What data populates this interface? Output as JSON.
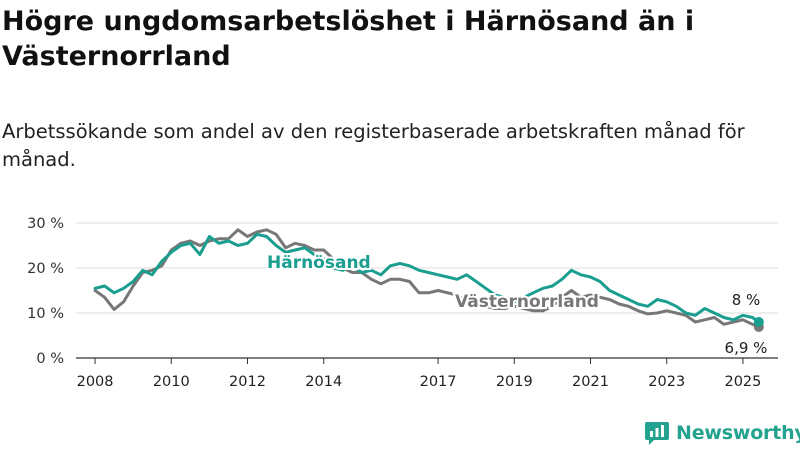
{
  "title": "Högre ungdomsarbetslöshet i Härnösand än i Västernorrland",
  "subtitle": "Arbetssökande som andel av den registerbaserade arbetskraften månad för månad.",
  "brand": {
    "name": "Newsworthy",
    "icon": "newsworthy-logo-icon",
    "color": "#23a38f"
  },
  "colors": {
    "harnosand": "#1a9e8f",
    "vasternorrland": "#777777",
    "grid": "#dddddd",
    "axis": "#333333"
  },
  "chart_data": {
    "type": "line",
    "title": "Högre ungdomsarbetslöshet i Härnösand än i Västernorrland",
    "subtitle": "Arbetssökande som andel av den registerbaserade arbetskraften månad för månad.",
    "ylim": [
      0,
      30
    ],
    "xlim": [
      "2007-07",
      "2025-07"
    ],
    "y_ticks": [
      {
        "value": 0,
        "label": "0 %"
      },
      {
        "value": 10,
        "label": "10 %"
      },
      {
        "value": 20,
        "label": "20 %"
      },
      {
        "value": 30,
        "label": "30 %"
      }
    ],
    "x_ticks": [
      {
        "value": "2008-01",
        "label": "2008"
      },
      {
        "value": "2010-01",
        "label": "2010"
      },
      {
        "value": "2012-01",
        "label": "2012"
      },
      {
        "value": "2014-01",
        "label": "2014"
      },
      {
        "value": "2017-01",
        "label": "2017"
      },
      {
        "value": "2019-01",
        "label": "2019"
      },
      {
        "value": "2021-01",
        "label": "2021"
      },
      {
        "value": "2023-01",
        "label": "2023"
      },
      {
        "value": "2025-01",
        "label": "2025"
      }
    ],
    "grid": true,
    "series": [
      {
        "name": "Västernorrland",
        "color": "#777777",
        "end_label": "6,9 %",
        "points": [
          [
            "2008-01",
            15.0
          ],
          [
            "2008-04",
            13.5
          ],
          [
            "2008-07",
            10.8
          ],
          [
            "2008-10",
            12.5
          ],
          [
            "2009-01",
            16.0
          ],
          [
            "2009-04",
            19.0
          ],
          [
            "2009-07",
            19.5
          ],
          [
            "2009-10",
            20.5
          ],
          [
            "2010-01",
            24.0
          ],
          [
            "2010-04",
            25.5
          ],
          [
            "2010-07",
            26.0
          ],
          [
            "2010-10",
            25.0
          ],
          [
            "2011-01",
            26.0
          ],
          [
            "2011-04",
            26.5
          ],
          [
            "2011-07",
            26.5
          ],
          [
            "2011-10",
            28.5
          ],
          [
            "2012-01",
            27.0
          ],
          [
            "2012-04",
            28.0
          ],
          [
            "2012-07",
            28.5
          ],
          [
            "2012-10",
            27.5
          ],
          [
            "2013-01",
            24.5
          ],
          [
            "2013-04",
            25.5
          ],
          [
            "2013-07",
            25.0
          ],
          [
            "2013-10",
            24.0
          ],
          [
            "2014-01",
            24.0
          ],
          [
            "2014-04",
            22.0
          ],
          [
            "2014-07",
            20.0
          ],
          [
            "2014-10",
            19.0
          ],
          [
            "2015-01",
            19.0
          ],
          [
            "2015-04",
            17.5
          ],
          [
            "2015-07",
            16.5
          ],
          [
            "2015-10",
            17.5
          ],
          [
            "2016-01",
            17.5
          ],
          [
            "2016-04",
            17.0
          ],
          [
            "2016-07",
            14.5
          ],
          [
            "2016-10",
            14.5
          ],
          [
            "2017-01",
            15.0
          ],
          [
            "2017-04",
            14.5
          ],
          [
            "2017-07",
            14.0
          ],
          [
            "2017-10",
            12.5
          ],
          [
            "2018-01",
            12.0
          ],
          [
            "2018-04",
            11.5
          ],
          [
            "2018-07",
            11.0
          ],
          [
            "2018-10",
            11.0
          ],
          [
            "2019-01",
            11.5
          ],
          [
            "2019-04",
            11.0
          ],
          [
            "2019-07",
            10.5
          ],
          [
            "2019-10",
            10.5
          ],
          [
            "2020-01",
            11.5
          ],
          [
            "2020-04",
            13.5
          ],
          [
            "2020-07",
            15.0
          ],
          [
            "2020-10",
            13.5
          ],
          [
            "2021-01",
            14.0
          ],
          [
            "2021-04",
            13.5
          ],
          [
            "2021-07",
            13.0
          ],
          [
            "2021-10",
            12.0
          ],
          [
            "2022-01",
            11.5
          ],
          [
            "2022-04",
            10.5
          ],
          [
            "2022-07",
            9.8
          ],
          [
            "2022-10",
            10.0
          ],
          [
            "2023-01",
            10.5
          ],
          [
            "2023-04",
            10.0
          ],
          [
            "2023-07",
            9.5
          ],
          [
            "2023-10",
            8.0
          ],
          [
            "2024-01",
            8.5
          ],
          [
            "2024-04",
            9.0
          ],
          [
            "2024-07",
            7.5
          ],
          [
            "2024-10",
            8.0
          ],
          [
            "2025-01",
            8.5
          ],
          [
            "2025-04",
            7.5
          ],
          [
            "2025-06",
            6.9
          ]
        ]
      },
      {
        "name": "Härnösand",
        "color": "#1a9e8f",
        "end_label": "8 %",
        "points": [
          [
            "2008-01",
            15.5
          ],
          [
            "2008-04",
            16.0
          ],
          [
            "2008-07",
            14.5
          ],
          [
            "2008-10",
            15.5
          ],
          [
            "2009-01",
            17.0
          ],
          [
            "2009-04",
            19.5
          ],
          [
            "2009-07",
            18.5
          ],
          [
            "2009-10",
            21.5
          ],
          [
            "2010-01",
            23.5
          ],
          [
            "2010-04",
            25.0
          ],
          [
            "2010-07",
            25.5
          ],
          [
            "2010-10",
            23.0
          ],
          [
            "2011-01",
            27.0
          ],
          [
            "2011-04",
            25.5
          ],
          [
            "2011-07",
            26.0
          ],
          [
            "2011-10",
            25.0
          ],
          [
            "2012-01",
            25.5
          ],
          [
            "2012-04",
            27.5
          ],
          [
            "2012-07",
            27.0
          ],
          [
            "2012-10",
            25.0
          ],
          [
            "2013-01",
            23.5
          ],
          [
            "2013-04",
            24.0
          ],
          [
            "2013-07",
            24.5
          ],
          [
            "2013-10",
            23.0
          ],
          [
            "2014-01",
            22.0
          ],
          [
            "2014-04",
            20.0
          ],
          [
            "2014-07",
            19.5
          ],
          [
            "2014-10",
            20.5
          ],
          [
            "2015-01",
            19.0
          ],
          [
            "2015-04",
            19.5
          ],
          [
            "2015-07",
            18.5
          ],
          [
            "2015-10",
            20.5
          ],
          [
            "2016-01",
            21.0
          ],
          [
            "2016-04",
            20.5
          ],
          [
            "2016-07",
            19.5
          ],
          [
            "2016-10",
            19.0
          ],
          [
            "2017-01",
            18.5
          ],
          [
            "2017-04",
            18.0
          ],
          [
            "2017-07",
            17.5
          ],
          [
            "2017-10",
            18.5
          ],
          [
            "2018-01",
            17.0
          ],
          [
            "2018-04",
            15.5
          ],
          [
            "2018-07",
            14.0
          ],
          [
            "2018-10",
            13.5
          ],
          [
            "2019-01",
            12.5
          ],
          [
            "2019-04",
            13.5
          ],
          [
            "2019-07",
            14.5
          ],
          [
            "2019-10",
            15.5
          ],
          [
            "2020-01",
            16.0
          ],
          [
            "2020-04",
            17.5
          ],
          [
            "2020-07",
            19.5
          ],
          [
            "2020-10",
            18.5
          ],
          [
            "2021-01",
            18.0
          ],
          [
            "2021-04",
            17.0
          ],
          [
            "2021-07",
            15.0
          ],
          [
            "2021-10",
            14.0
          ],
          [
            "2022-01",
            13.0
          ],
          [
            "2022-04",
            12.0
          ],
          [
            "2022-07",
            11.5
          ],
          [
            "2022-10",
            13.0
          ],
          [
            "2023-01",
            12.5
          ],
          [
            "2023-04",
            11.5
          ],
          [
            "2023-07",
            10.0
          ],
          [
            "2023-10",
            9.5
          ],
          [
            "2024-01",
            11.0
          ],
          [
            "2024-04",
            10.0
          ],
          [
            "2024-07",
            9.0
          ],
          [
            "2024-10",
            8.5
          ],
          [
            "2025-01",
            9.5
          ],
          [
            "2025-04",
            9.0
          ],
          [
            "2025-06",
            8.0
          ]
        ]
      }
    ]
  }
}
